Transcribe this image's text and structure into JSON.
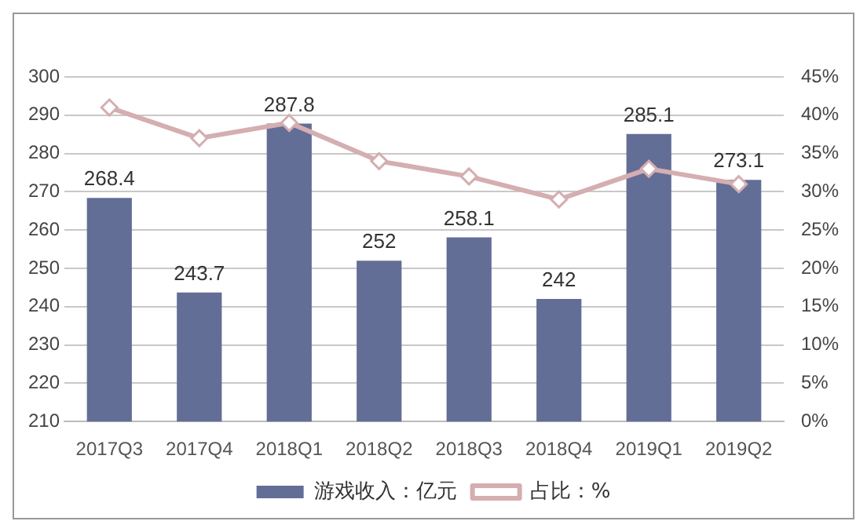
{
  "chart_data": {
    "type": "bar",
    "categories": [
      "2017Q3",
      "2017Q4",
      "2018Q1",
      "2018Q2",
      "2018Q3",
      "2018Q4",
      "2019Q1",
      "2019Q2"
    ],
    "series": [
      {
        "name": "游戏收入：亿元",
        "color": "#636e97",
        "values": [
          268.4,
          243.7,
          287.8,
          252,
          258.1,
          242,
          285.1,
          273.1
        ],
        "value_labels": [
          "268.4",
          "243.7",
          "287.8",
          "252",
          "258.1",
          "242",
          "285.1",
          "273.1"
        ]
      },
      {
        "name": "占比：%",
        "type": "line",
        "axis": "y2",
        "color": "#d4aeb0",
        "values": [
          41,
          37,
          39,
          34,
          32,
          29,
          33,
          31
        ]
      }
    ],
    "ylim": [
      210,
      300
    ],
    "yticks": [
      210,
      220,
      230,
      240,
      250,
      260,
      270,
      280,
      290,
      300
    ],
    "y2lim": [
      0,
      45
    ],
    "y2ticks": [
      {
        "value": 0,
        "label": "0%"
      },
      {
        "value": 5,
        "label": "5%"
      },
      {
        "value": 10,
        "label": "10%"
      },
      {
        "value": 15,
        "label": "15%"
      },
      {
        "value": 20,
        "label": "20%"
      },
      {
        "value": 25,
        "label": "25%"
      },
      {
        "value": 30,
        "label": "30%"
      },
      {
        "value": 35,
        "label": "35%"
      },
      {
        "value": 40,
        "label": "40%"
      },
      {
        "value": 45,
        "label": "45%"
      }
    ],
    "grid": "y",
    "legend": "bottom",
    "marker": "diamond",
    "line_style": "solid"
  }
}
